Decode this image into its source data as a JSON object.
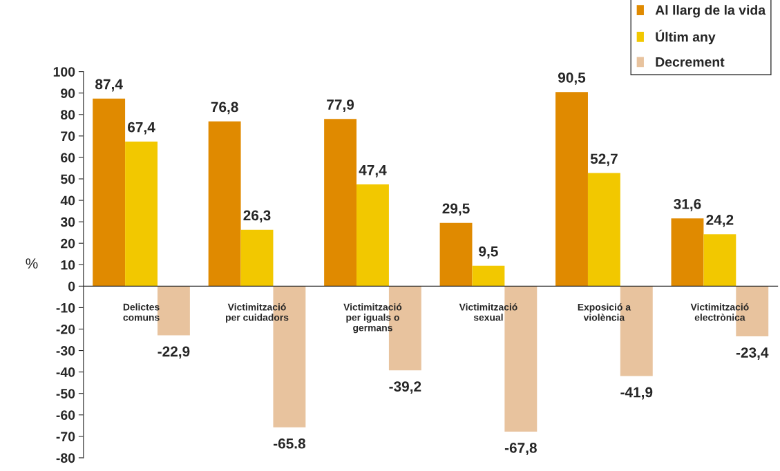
{
  "chart_data": {
    "type": "bar",
    "categories": [
      "Delictes\ncomuns",
      "Victimització\nper cuidadors",
      "Victimització\nper iguals o\ngermans",
      "Victimització\nsexual",
      "Exposició a\nviolència",
      "Victimització\nelectrònica"
    ],
    "series": [
      {
        "name": "Al llarg de la vida",
        "color": "#e08a00",
        "values": [
          87.4,
          76.8,
          77.9,
          29.5,
          90.5,
          31.6
        ],
        "value_labels": [
          "87,4",
          "76,8",
          "77,9",
          "29,5",
          "90,5",
          "31,6"
        ]
      },
      {
        "name": "Últim any",
        "color": "#f2c800",
        "values": [
          67.4,
          26.3,
          47.4,
          9.5,
          52.7,
          24.2
        ],
        "value_labels": [
          "67,4",
          "26,3",
          "47,4",
          "9,5",
          "52,7",
          "24,2"
        ]
      },
      {
        "name": "Decrement",
        "color": "#e8c39e",
        "values": [
          -22.9,
          -65.8,
          -39.2,
          -67.8,
          -41.9,
          -23.4
        ],
        "value_labels": [
          "-22,9",
          "-65.8",
          "-39,2",
          "-67,8",
          "-41,9",
          "-23,4"
        ]
      }
    ],
    "ylabel": "%",
    "ylim": [
      -80,
      100
    ],
    "yticks": [
      -80,
      -70,
      -60,
      -50,
      -40,
      -30,
      -20,
      -10,
      0,
      10,
      20,
      30,
      40,
      50,
      60,
      70,
      80,
      90,
      100
    ],
    "grid": false,
    "legend": "top right"
  }
}
